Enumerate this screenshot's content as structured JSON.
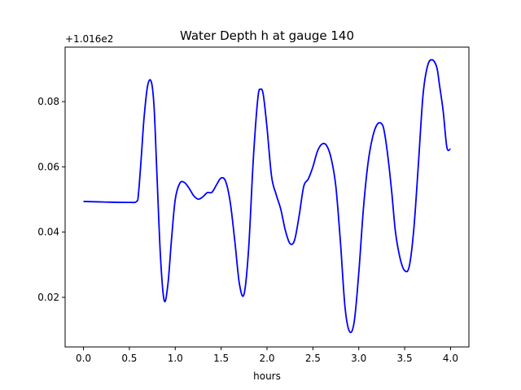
{
  "chart_data": {
    "type": "line",
    "title": "Water Depth h at gauge 140",
    "xlabel": "hours",
    "ylabel": "",
    "y_offset_label": "+1.016e2",
    "xlim": [
      -0.2,
      4.2
    ],
    "ylim": [
      0.0048,
      0.0967
    ],
    "x_ticks": [
      0.0,
      0.5,
      1.0,
      1.5,
      2.0,
      2.5,
      3.0,
      3.5,
      4.0
    ],
    "x_tick_labels": [
      "0.0",
      "0.5",
      "1.0",
      "1.5",
      "2.0",
      "2.5",
      "3.0",
      "3.5",
      "4.0"
    ],
    "y_ticks": [
      0.02,
      0.04,
      0.06,
      0.08
    ],
    "y_tick_labels": [
      "0.02",
      "0.04",
      "0.06",
      "0.08"
    ],
    "grid": false,
    "line_color": "#0000ff",
    "series": [
      {
        "x": [
          0.0,
          0.25,
          0.5,
          0.58,
          0.6,
          0.63,
          0.66,
          0.7,
          0.74,
          0.77,
          0.8,
          0.84,
          0.88,
          0.92,
          0.96,
          1.0,
          1.05,
          1.1,
          1.15,
          1.2,
          1.25,
          1.3,
          1.35,
          1.4,
          1.45,
          1.5,
          1.55,
          1.6,
          1.65,
          1.7,
          1.75,
          1.8,
          1.85,
          1.9,
          1.93,
          1.96,
          2.0,
          2.05,
          2.1,
          2.15,
          2.2,
          2.25,
          2.3,
          2.35,
          2.4,
          2.45,
          2.5,
          2.55,
          2.6,
          2.65,
          2.7,
          2.75,
          2.8,
          2.85,
          2.9,
          2.95,
          3.0,
          3.05,
          3.1,
          3.15,
          3.2,
          3.25,
          3.28,
          3.32,
          3.36,
          3.4,
          3.45,
          3.5,
          3.55,
          3.6,
          3.65,
          3.7,
          3.75,
          3.8,
          3.85,
          3.88,
          3.92,
          3.96,
          4.0
        ],
        "y": [
          0.0494,
          0.0492,
          0.0491,
          0.0494,
          0.052,
          0.063,
          0.075,
          0.085,
          0.086,
          0.078,
          0.058,
          0.032,
          0.019,
          0.024,
          0.038,
          0.05,
          0.055,
          0.0552,
          0.0535,
          0.0512,
          0.0501,
          0.0508,
          0.0521,
          0.0522,
          0.0545,
          0.0566,
          0.0555,
          0.049,
          0.037,
          0.024,
          0.021,
          0.035,
          0.062,
          0.081,
          0.0838,
          0.082,
          0.072,
          0.057,
          0.0515,
          0.047,
          0.0405,
          0.0365,
          0.0375,
          0.045,
          0.054,
          0.0563,
          0.06,
          0.0648,
          0.067,
          0.0665,
          0.0625,
          0.054,
          0.037,
          0.017,
          0.0095,
          0.0125,
          0.0275,
          0.047,
          0.061,
          0.069,
          0.073,
          0.0732,
          0.0705,
          0.0625,
          0.052,
          0.04,
          0.032,
          0.0282,
          0.0295,
          0.041,
          0.061,
          0.082,
          0.091,
          0.0928,
          0.0905,
          0.085,
          0.077,
          0.066,
          0.0655
        ]
      }
    ]
  }
}
